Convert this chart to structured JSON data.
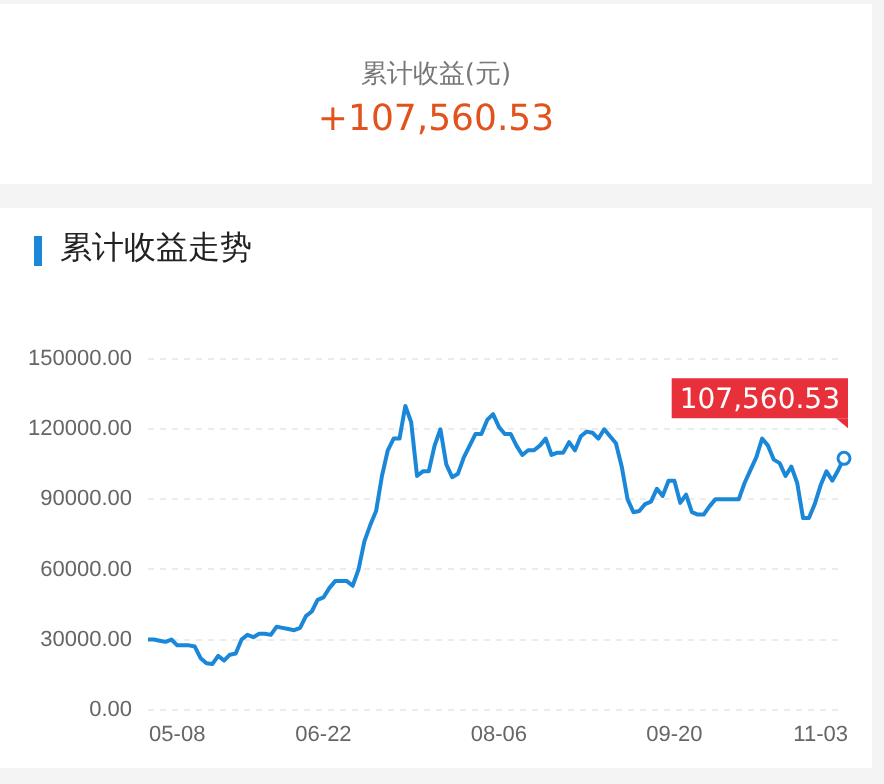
{
  "chart_data": {
    "type": "line",
    "title": "累计收益走势",
    "annotations": [
      "累计收益(元)",
      "+107,560.53",
      {
        "text": "107,560.53",
        "y": 107560.53
      }
    ],
    "categories": [
      null,
      null,
      null,
      null,
      null,
      "05-08",
      null,
      null,
      null,
      null,
      null,
      null,
      null,
      null,
      null,
      null,
      null,
      null,
      null,
      null,
      null,
      null,
      null,
      null,
      null,
      null,
      null,
      null,
      null,
      null,
      "06-22",
      null,
      null,
      null,
      null,
      null,
      null,
      null,
      null,
      null,
      null,
      null,
      null,
      null,
      null,
      null,
      null,
      null,
      null,
      null,
      null,
      null,
      null,
      null,
      null,
      null,
      null,
      null,
      null,
      null,
      "08-06",
      null,
      null,
      null,
      null,
      null,
      null,
      null,
      null,
      null,
      null,
      null,
      null,
      null,
      null,
      null,
      null,
      null,
      null,
      null,
      null,
      null,
      null,
      null,
      null,
      null,
      null,
      null,
      null,
      null,
      "09-20",
      null,
      null,
      null,
      null,
      null,
      null,
      null,
      null,
      null,
      null,
      null,
      null,
      null,
      null,
      null,
      null,
      null,
      null,
      null,
      null,
      null,
      null,
      null,
      null,
      "11-03",
      null,
      null,
      null,
      null
    ],
    "series": [
      {
        "color": "#1a87d9",
        "values": [
          30000,
          30000,
          29500,
          29000,
          30000,
          27500,
          27500,
          27500,
          27000,
          22000,
          19800,
          19500,
          23000,
          21000,
          23500,
          24000,
          30000,
          32000,
          31000,
          32500,
          32500,
          32000,
          35500,
          35000,
          34500,
          34000,
          35000,
          40000,
          42000,
          47000,
          48000,
          52000,
          55000,
          55000,
          55000,
          53000,
          60000,
          72000,
          79000,
          85000,
          100000,
          111000,
          116000,
          116000,
          130000,
          123000,
          100000,
          102000,
          102000,
          113000,
          120000,
          105000,
          99500,
          101000,
          108000,
          113000,
          118000,
          118000,
          124000,
          126500,
          121000,
          118000,
          118000,
          113000,
          109000,
          111000,
          111000,
          113000,
          116000,
          109000,
          110000,
          110000,
          114500,
          111000,
          117000,
          119000,
          118500,
          116000,
          120000,
          117000,
          114000,
          104000,
          90000,
          84500,
          85000,
          88000,
          89000,
          94500,
          91500,
          98000,
          98000,
          88500,
          92000,
          84500,
          83500,
          83500,
          87000,
          90000,
          90000,
          90000,
          90000,
          90000,
          97000,
          102500,
          108000,
          116000,
          113000,
          107000,
          105500,
          100000,
          104000,
          97000,
          82000,
          82000,
          88000,
          96000,
          102000,
          98000,
          102500,
          107560.53
        ]
      }
    ],
    "ylim": [
      0,
      150000
    ],
    "yticks": [
      {
        "value": 0,
        "label": "0.00"
      },
      {
        "value": 30000,
        "label": "30000.00"
      },
      {
        "value": 60000,
        "label": "60000.00"
      },
      {
        "value": 90000,
        "label": "90000.00"
      },
      {
        "value": 120000,
        "label": "120000.00"
      },
      {
        "value": 150000,
        "label": "150000.00"
      }
    ],
    "grid": "y",
    "legend": false,
    "marker": "none",
    "line_style": "solid"
  }
}
